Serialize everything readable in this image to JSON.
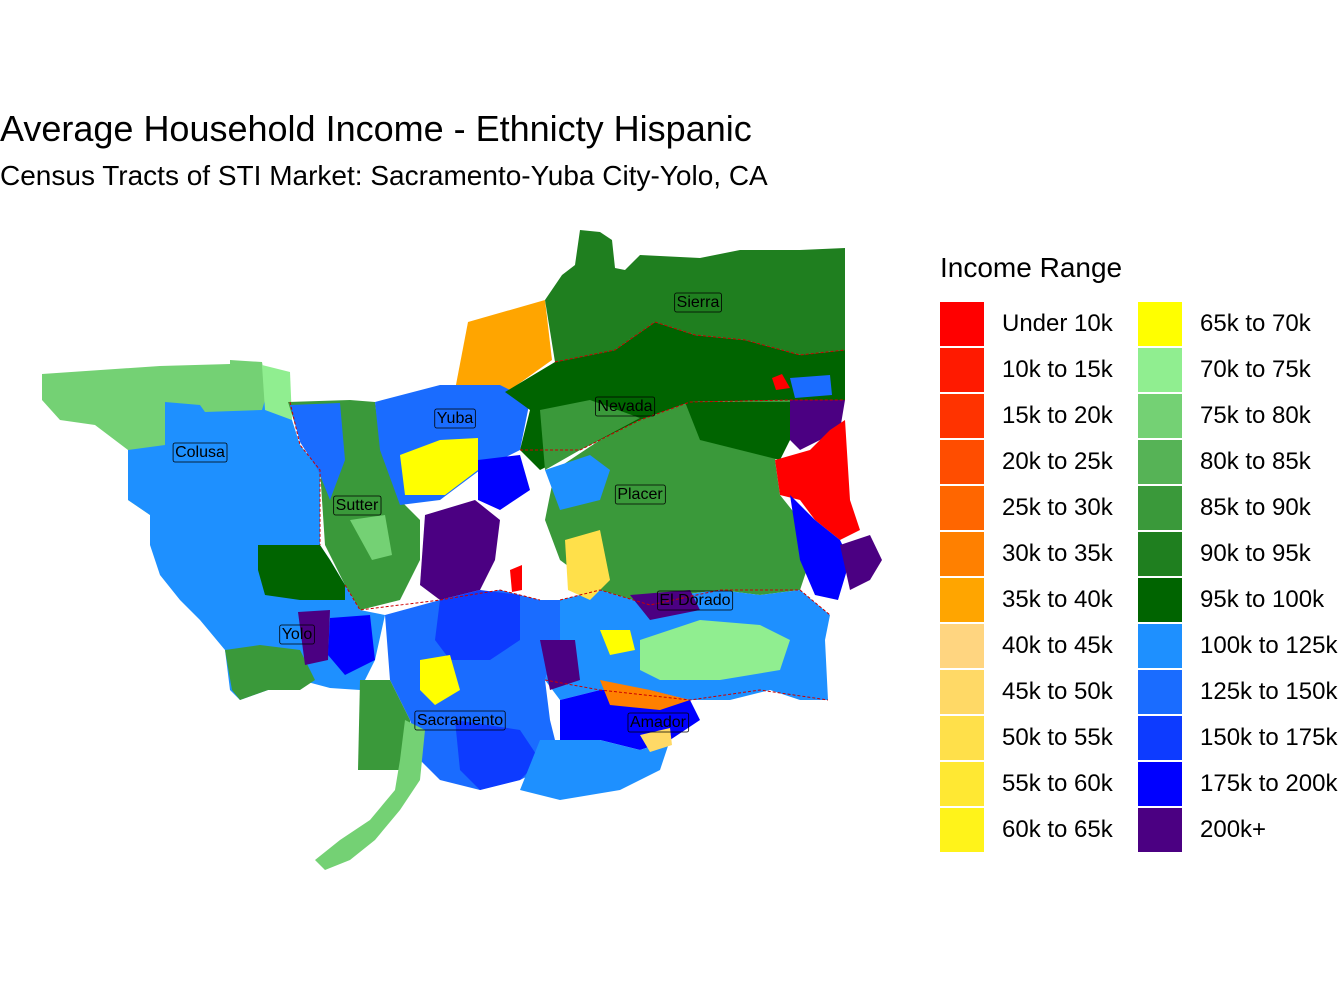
{
  "title": "Average Household Income - Ethnicty Hispanic",
  "subtitle": "Census Tracts of STI Market: Sacramento-Yuba City-Yolo, CA",
  "legend": {
    "title": "Income Range",
    "items": [
      {
        "label": "Under 10k",
        "color": "#ff0000"
      },
      {
        "label": "10k to 15k",
        "color": "#ff1a00"
      },
      {
        "label": "15k to 20k",
        "color": "#ff3300"
      },
      {
        "label": "20k to 25k",
        "color": "#ff4d00"
      },
      {
        "label": "25k to 30k",
        "color": "#ff6600"
      },
      {
        "label": "30k to 35k",
        "color": "#ff8000"
      },
      {
        "label": "35k to 40k",
        "color": "#ffa500"
      },
      {
        "label": "40k to 45k",
        "color": "#ffd580"
      },
      {
        "label": "45k to 50k",
        "color": "#ffd966"
      },
      {
        "label": "50k to 55k",
        "color": "#ffe04a"
      },
      {
        "label": "55k to 60k",
        "color": "#ffe833"
      },
      {
        "label": "60k to 65k",
        "color": "#fff31a"
      },
      {
        "label": "65k to 70k",
        "color": "#ffff00"
      },
      {
        "label": "70k to 75k",
        "color": "#90ee90"
      },
      {
        "label": "75k to 80k",
        "color": "#74d174"
      },
      {
        "label": "80k to 85k",
        "color": "#56b356"
      },
      {
        "label": "85k to 90k",
        "color": "#3a993a"
      },
      {
        "label": "90k to 95k",
        "color": "#1f7f1f"
      },
      {
        "label": "95k to 100k",
        "color": "#006400"
      },
      {
        "label": "100k to 125k",
        "color": "#1e90ff"
      },
      {
        "label": "125k to 150k",
        "color": "#1a6cff"
      },
      {
        "label": "150k to 175k",
        "color": "#0d3bff"
      },
      {
        "label": "175k to 200k",
        "color": "#0000ff"
      },
      {
        "label": "200k+",
        "color": "#4b0082"
      }
    ]
  },
  "counties": [
    {
      "name": "Sierra"
    },
    {
      "name": "Yuba"
    },
    {
      "name": "Nevada"
    },
    {
      "name": "Colusa"
    },
    {
      "name": "Sutter"
    },
    {
      "name": "Placer"
    },
    {
      "name": "El Dorado"
    },
    {
      "name": "Yolo"
    },
    {
      "name": "Sacramento"
    },
    {
      "name": "Amador"
    }
  ]
}
